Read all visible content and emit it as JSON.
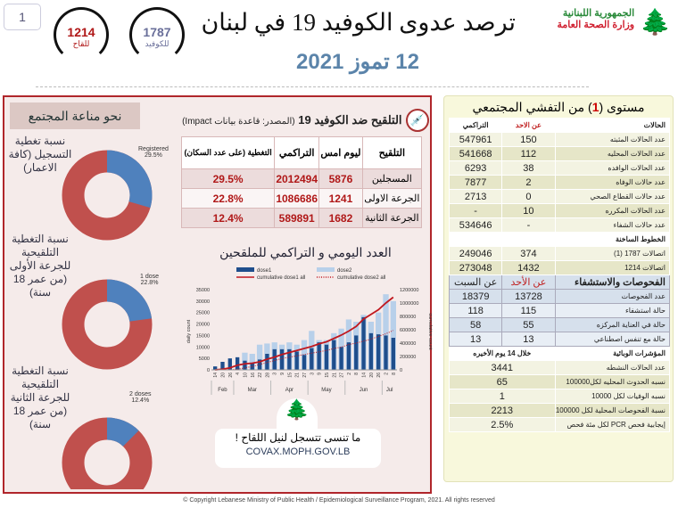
{
  "page_number": "1",
  "hotlines": [
    {
      "number": "1214",
      "label": "للقاح",
      "color": "#b01818"
    },
    {
      "number": "1787",
      "label": "للكوفيد",
      "color": "#6a6f9a"
    }
  ],
  "title": "ترصد عدوى الكوفيد 19 في لبنان",
  "date": "12 تموز 2021",
  "logo": {
    "line1": "الجمهورية اللبنانية",
    "line2": "وزارة الصحة العامة"
  },
  "community": {
    "title": "نحو مناعة المجتمع",
    "donuts": [
      {
        "label": "نسبة تغطية التسجيل (كافة الاعمار)",
        "series": "Registered",
        "pct": 29.5,
        "pct_label": "29.5%"
      },
      {
        "label": "نسبة التغطية التلقيحية للجرعة الأولى (من عمر 18 سنة)",
        "series": "1 dose",
        "pct": 22.8,
        "pct_label": "22.8%"
      },
      {
        "label": "نسبة التغطية التلقيحية للجرعة الثانية (من عمر 18 سنة)",
        "series": "2 doses",
        "pct": 12.4,
        "pct_label": "12.4%"
      }
    ],
    "colors": {
      "covered": "#4f81bd",
      "remaining": "#c0504d"
    }
  },
  "vaccination": {
    "title": "التلقيح ضد الكوفيد 19",
    "source": "(المصدر: قاعدة بيانات Impact)",
    "headers": [
      "التلقيح",
      "ليوم امس",
      "التراكمي",
      "التغطية (على عدد السكان)"
    ],
    "rows": [
      [
        "المسجلين",
        "5876",
        "2012494",
        "29.5%"
      ],
      [
        "الجرعة الاولى",
        "1241",
        "1086686",
        "22.8%"
      ],
      [
        "الجرعة الثانية",
        "1682",
        "589891",
        "12.4%"
      ]
    ]
  },
  "chart_data": {
    "type": "bar",
    "title": "العدد اليومي و التراكمي للملقحين",
    "ylabel": "daily count",
    "y2label": "cumulative count",
    "ylim": [
      0,
      35000
    ],
    "y2lim": [
      0,
      1200000
    ],
    "yticks": [
      "0",
      "5000",
      "10000",
      "15000",
      "20000",
      "25000",
      "30000",
      "35000"
    ],
    "y2ticks": [
      "0",
      "200000",
      "400000",
      "600000",
      "800000",
      "1000000",
      "1200000"
    ],
    "x": [
      "14",
      "20",
      "26",
      "4",
      "10",
      "16",
      "22",
      "28",
      "3",
      "9",
      "15",
      "21",
      "27",
      "3",
      "9",
      "15",
      "21",
      "27",
      "2",
      "8",
      "14",
      "20",
      "26",
      "2",
      "8"
    ],
    "months": [
      "Feb",
      "Mar",
      "Apr",
      "May",
      "Jun",
      "Jul"
    ],
    "series": [
      {
        "name": "dose1",
        "kind": "bar",
        "color": "#1f4e8c",
        "values": [
          1500,
          3500,
          5000,
          5500,
          4000,
          3000,
          4500,
          7000,
          9000,
          9000,
          9000,
          8000,
          6500,
          9500,
          12000,
          11000,
          13000,
          10000,
          12000,
          15000,
          23000,
          16000,
          15500,
          15000,
          14000
        ]
      },
      {
        "name": "dose2",
        "kind": "bar",
        "color": "#b8d0ea",
        "values": [
          0,
          0,
          0,
          1000,
          7500,
          7000,
          11000,
          11500,
          12000,
          11000,
          12000,
          11000,
          13000,
          17000,
          13000,
          13000,
          16000,
          18000,
          22000,
          21000,
          24000,
          21000,
          25000,
          33000,
          30000
        ]
      },
      {
        "name": "cumulative dose1 all",
        "kind": "line",
        "color": "#c0181f",
        "values": [
          0,
          10000,
          30000,
          70000,
          90000,
          100000,
          120000,
          160000,
          190000,
          230000,
          260000,
          290000,
          320000,
          350000,
          390000,
          420000,
          470000,
          520000,
          580000,
          650000,
          760000,
          830000,
          900000,
          1000000,
          1086686
        ]
      },
      {
        "name": "cumulative dose2 all",
        "kind": "dotted-line",
        "color": "#c0181f",
        "values": [
          0,
          0,
          0,
          10000,
          30000,
          50000,
          80000,
          110000,
          140000,
          170000,
          190000,
          210000,
          230000,
          250000,
          270000,
          290000,
          320000,
          340000,
          380000,
          400000,
          430000,
          460000,
          500000,
          540000,
          589891
        ]
      }
    ]
  },
  "covax": {
    "text": "ما تنسى تتسجل لنيل اللقاح !",
    "url": "COVAX.MOPH.GOV.LB"
  },
  "spread": {
    "title_pre": "مستوى (",
    "level": "1",
    "title_post": ") من التفشي المجتمعي",
    "cases_header": [
      "الحالات",
      "عن الاحد",
      "التراكمي"
    ],
    "cases": [
      [
        "عدد الحالات المثبته",
        "150",
        "547961"
      ],
      [
        "عدد الحالات المحليه",
        "112",
        "541668"
      ],
      [
        "عدد الحالات الوافده",
        "38",
        "6293"
      ],
      [
        "عدد حالات الوفاه",
        "2",
        "7877"
      ],
      [
        "عدد حالات القطاع الصحي",
        "0",
        "2713"
      ],
      [
        "عدد الحالات المكرره",
        "10",
        "-"
      ],
      [
        "عدد حالات الشفاء",
        "-",
        "534646"
      ]
    ],
    "hotlines_header": "الخطوط الساخنة",
    "hotlines": [
      [
        "اتصالات 1787 (1)",
        "374",
        "249046"
      ],
      [
        "اتصالات 1214",
        "1432",
        "273048"
      ]
    ],
    "tests_header": [
      "الفحوصات والاستشفاء",
      "عن الأحد",
      "عن السبت"
    ],
    "tests": [
      [
        "عدد الفحوصات",
        "13728",
        "18379"
      ],
      [
        "حالة استشفاء",
        "115",
        "118"
      ],
      [
        "حالة في العناية المركزه",
        "55",
        "58"
      ],
      [
        "حالة مع تنفس اصطناعي",
        "13",
        "13"
      ]
    ],
    "indicators_header": [
      "المؤشرات الوبائية",
      "خلال 14 يوم الأخيره"
    ],
    "indicators": [
      [
        "عدد الحالات النشطه",
        "3441"
      ],
      [
        "نسبه الحدوث المحليه لكل100000",
        "65"
      ],
      [
        "نسبه الوفيات لكل 10000",
        "1"
      ],
      [
        "نسبة الفحوصات المحلية لكل 100000",
        "2213"
      ],
      [
        "إيجابية فحص PCR لكل مئة فحص",
        "2.5%"
      ]
    ]
  },
  "footer": "© Copyright Lebanese Ministry of Public Health / Epidemiological Surveillance Program, 2021. All rights reserved"
}
